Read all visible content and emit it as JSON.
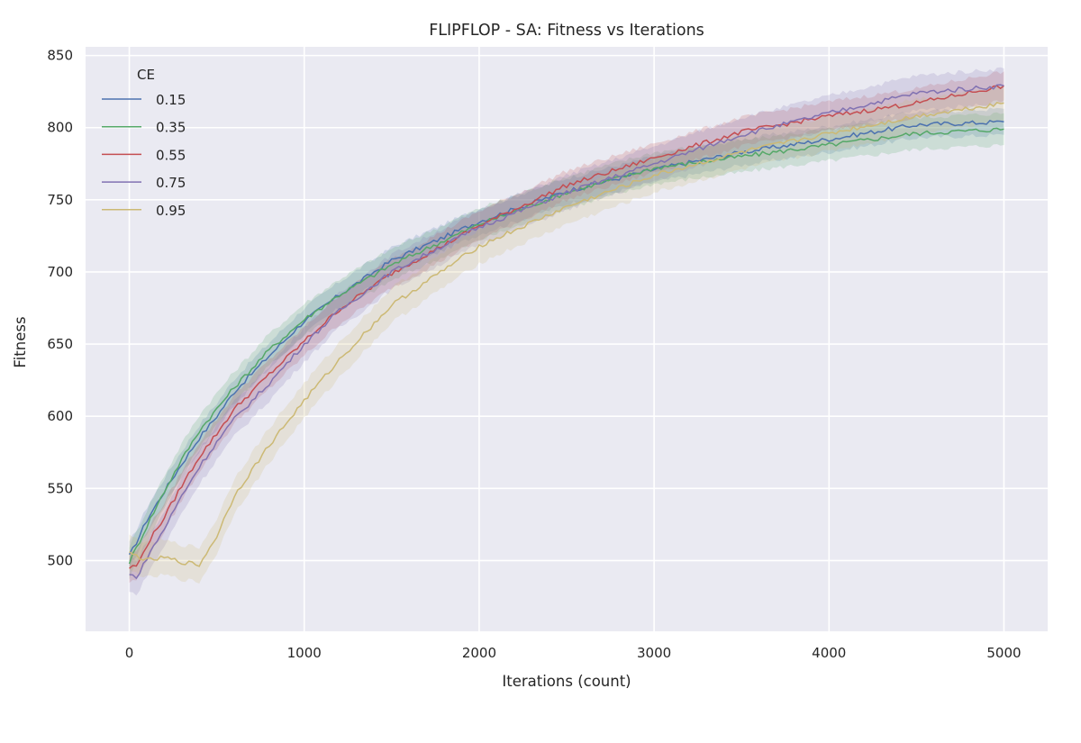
{
  "chart_data": {
    "type": "line",
    "title": "FLIPFLOP - SA: Fitness vs Iterations",
    "xlabel": "Iterations (count)",
    "ylabel": "Fitness",
    "xlim": [
      -250,
      5250
    ],
    "ylim": [
      451,
      856
    ],
    "xticks": [
      0,
      1000,
      2000,
      3000,
      4000,
      5000
    ],
    "yticks": [
      500,
      550,
      600,
      650,
      700,
      750,
      800,
      850
    ],
    "grid": true,
    "legend": {
      "title": "CE",
      "position": "top-left"
    },
    "x": [
      0,
      50,
      100,
      200,
      300,
      400,
      500,
      600,
      800,
      1000,
      1200,
      1500,
      2000,
      2500,
      3000,
      3500,
      4000,
      4500,
      5000
    ],
    "series": [
      {
        "name": "0.15",
        "color": "#4c72b0",
        "band": 9,
        "values": [
          503,
          515,
          528,
          548,
          567,
          585,
          600,
          617,
          642,
          666,
          684,
          708,
          735,
          756,
          771,
          783,
          792,
          802,
          804
        ]
      },
      {
        "name": "0.35",
        "color": "#55a868",
        "band": 11,
        "values": [
          499,
          511,
          524,
          548,
          570,
          590,
          605,
          620,
          646,
          667,
          684,
          705,
          733,
          755,
          772,
          780,
          788,
          796,
          799
        ]
      },
      {
        "name": "0.55",
        "color": "#c44e52",
        "band": 10,
        "values": [
          495,
          497,
          511,
          530,
          552,
          572,
          588,
          605,
          629,
          652,
          674,
          699,
          732,
          760,
          779,
          797,
          808,
          817,
          829
        ]
      },
      {
        "name": "0.75",
        "color": "#8172b2",
        "band": 12,
        "values": [
          490,
          489,
          502,
          522,
          545,
          565,
          582,
          598,
          623,
          650,
          673,
          700,
          731,
          755,
          775,
          795,
          810,
          824,
          829
        ]
      },
      {
        "name": "0.95",
        "color": "#ccb974",
        "band": 12,
        "values": [
          505,
          503,
          500,
          502,
          499,
          497,
          517,
          545,
          580,
          611,
          639,
          677,
          718,
          745,
          767,
          783,
          796,
          808,
          817
        ]
      }
    ]
  }
}
